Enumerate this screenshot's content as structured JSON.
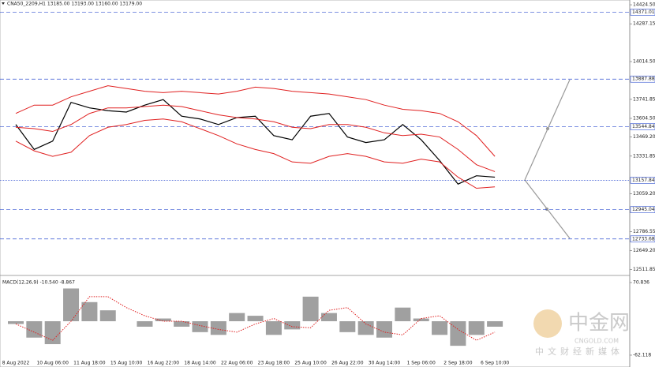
{
  "chart_data": [
    {
      "type": "price",
      "title": "CNA50_2209,H1  13185.00 13193.00 13160.00 13179.00",
      "categories": [
        "8 Aug 2022",
        null,
        "10 Aug 06:00",
        null,
        "11 Aug 18:00",
        null,
        "15 Aug 10:00",
        null,
        "16 Aug 22:00",
        null,
        "18 Aug 14:00",
        null,
        "22 Aug 06:00",
        null,
        "23 Aug 18:00",
        null,
        "25 Aug 10:00",
        null,
        "26 Aug 22:00",
        null,
        "30 Aug 14:00",
        null,
        "1 Sep 06:00",
        null,
        "2 Sep 18:00",
        null,
        "6 Sep 10:00"
      ],
      "series": [
        {
          "color": "#000000",
          "values": [
            13560,
            13380,
            13440,
            13720,
            13680,
            13660,
            13650,
            13700,
            13740,
            13620,
            13600,
            13560,
            13610,
            13620,
            13480,
            13450,
            13620,
            13640,
            13470,
            13430,
            13450,
            13560,
            13450,
            13300,
            13130,
            13190,
            13180
          ]
        },
        {
          "color": "#e02020",
          "values": [
            13640,
            13700,
            13700,
            13760,
            13800,
            13840,
            13820,
            13800,
            13790,
            13800,
            13790,
            13780,
            13800,
            13830,
            13820,
            13800,
            13790,
            13780,
            13760,
            13740,
            13700,
            13670,
            13660,
            13640,
            13580,
            13480,
            13330
          ]
        },
        {
          "color": "#e02020",
          "values": [
            13540,
            13530,
            13510,
            13560,
            13640,
            13680,
            13680,
            13690,
            13700,
            13690,
            13660,
            13630,
            13610,
            13600,
            13580,
            13540,
            13530,
            13560,
            13560,
            13540,
            13500,
            13480,
            13490,
            13470,
            13380,
            13270,
            13220
          ]
        },
        {
          "color": "#e02020",
          "values": [
            13440,
            13370,
            13330,
            13360,
            13480,
            13540,
            13560,
            13590,
            13600,
            13580,
            13530,
            13480,
            13420,
            13380,
            13350,
            13290,
            13280,
            13330,
            13350,
            13330,
            13290,
            13280,
            13310,
            13290,
            13180,
            13100,
            13110
          ]
        }
      ],
      "ylim": [
        12476,
        14459
      ],
      "yticks": [
        {
          "value": 14424.5,
          "label": "14424.50"
        },
        14287.15,
        {
          "value": 14014.5,
          "label": "14014.50"
        },
        13741.85,
        {
          "value": 13604.5,
          "label": "13604.50"
        },
        {
          "value": 13469.2,
          "label": "13469.20"
        },
        13331.85,
        {
          "value": 13059.2,
          "label": "13059.20"
        },
        12786.55,
        {
          "value": 12649.2,
          "label": "12649.20"
        },
        12511.85
      ],
      "levels": [
        14371.01,
        13887.88,
        13544.84,
        13157.84,
        12945.04,
        12733.68
      ],
      "level_color": "#3050d0"
    },
    {
      "type": "macd",
      "title": "MACD(12,26,9) -10.540 -8.867",
      "values": [
        -5,
        -30,
        -42,
        60,
        35,
        20,
        0,
        -10,
        5,
        -10,
        -20,
        -25,
        15,
        10,
        -25,
        -15,
        45,
        15,
        -20,
        -25,
        -30,
        25,
        5,
        -25,
        -45,
        -25,
        -10
      ],
      "color": "#a0a0a0",
      "series": [
        {
          "color": "#e02020",
          "values": [
            -5,
            -20,
            -35,
            0,
            45,
            45,
            25,
            10,
            0,
            0,
            -8,
            -15,
            -20,
            -5,
            5,
            -10,
            -12,
            20,
            25,
            -5,
            -20,
            -25,
            5,
            10,
            -15,
            -35,
            -20
          ]
        }
      ],
      "ylim": [
        -76.6,
        79.5
      ],
      "yticks": [
        70.836,
        -62.118
      ]
    }
  ]
}
